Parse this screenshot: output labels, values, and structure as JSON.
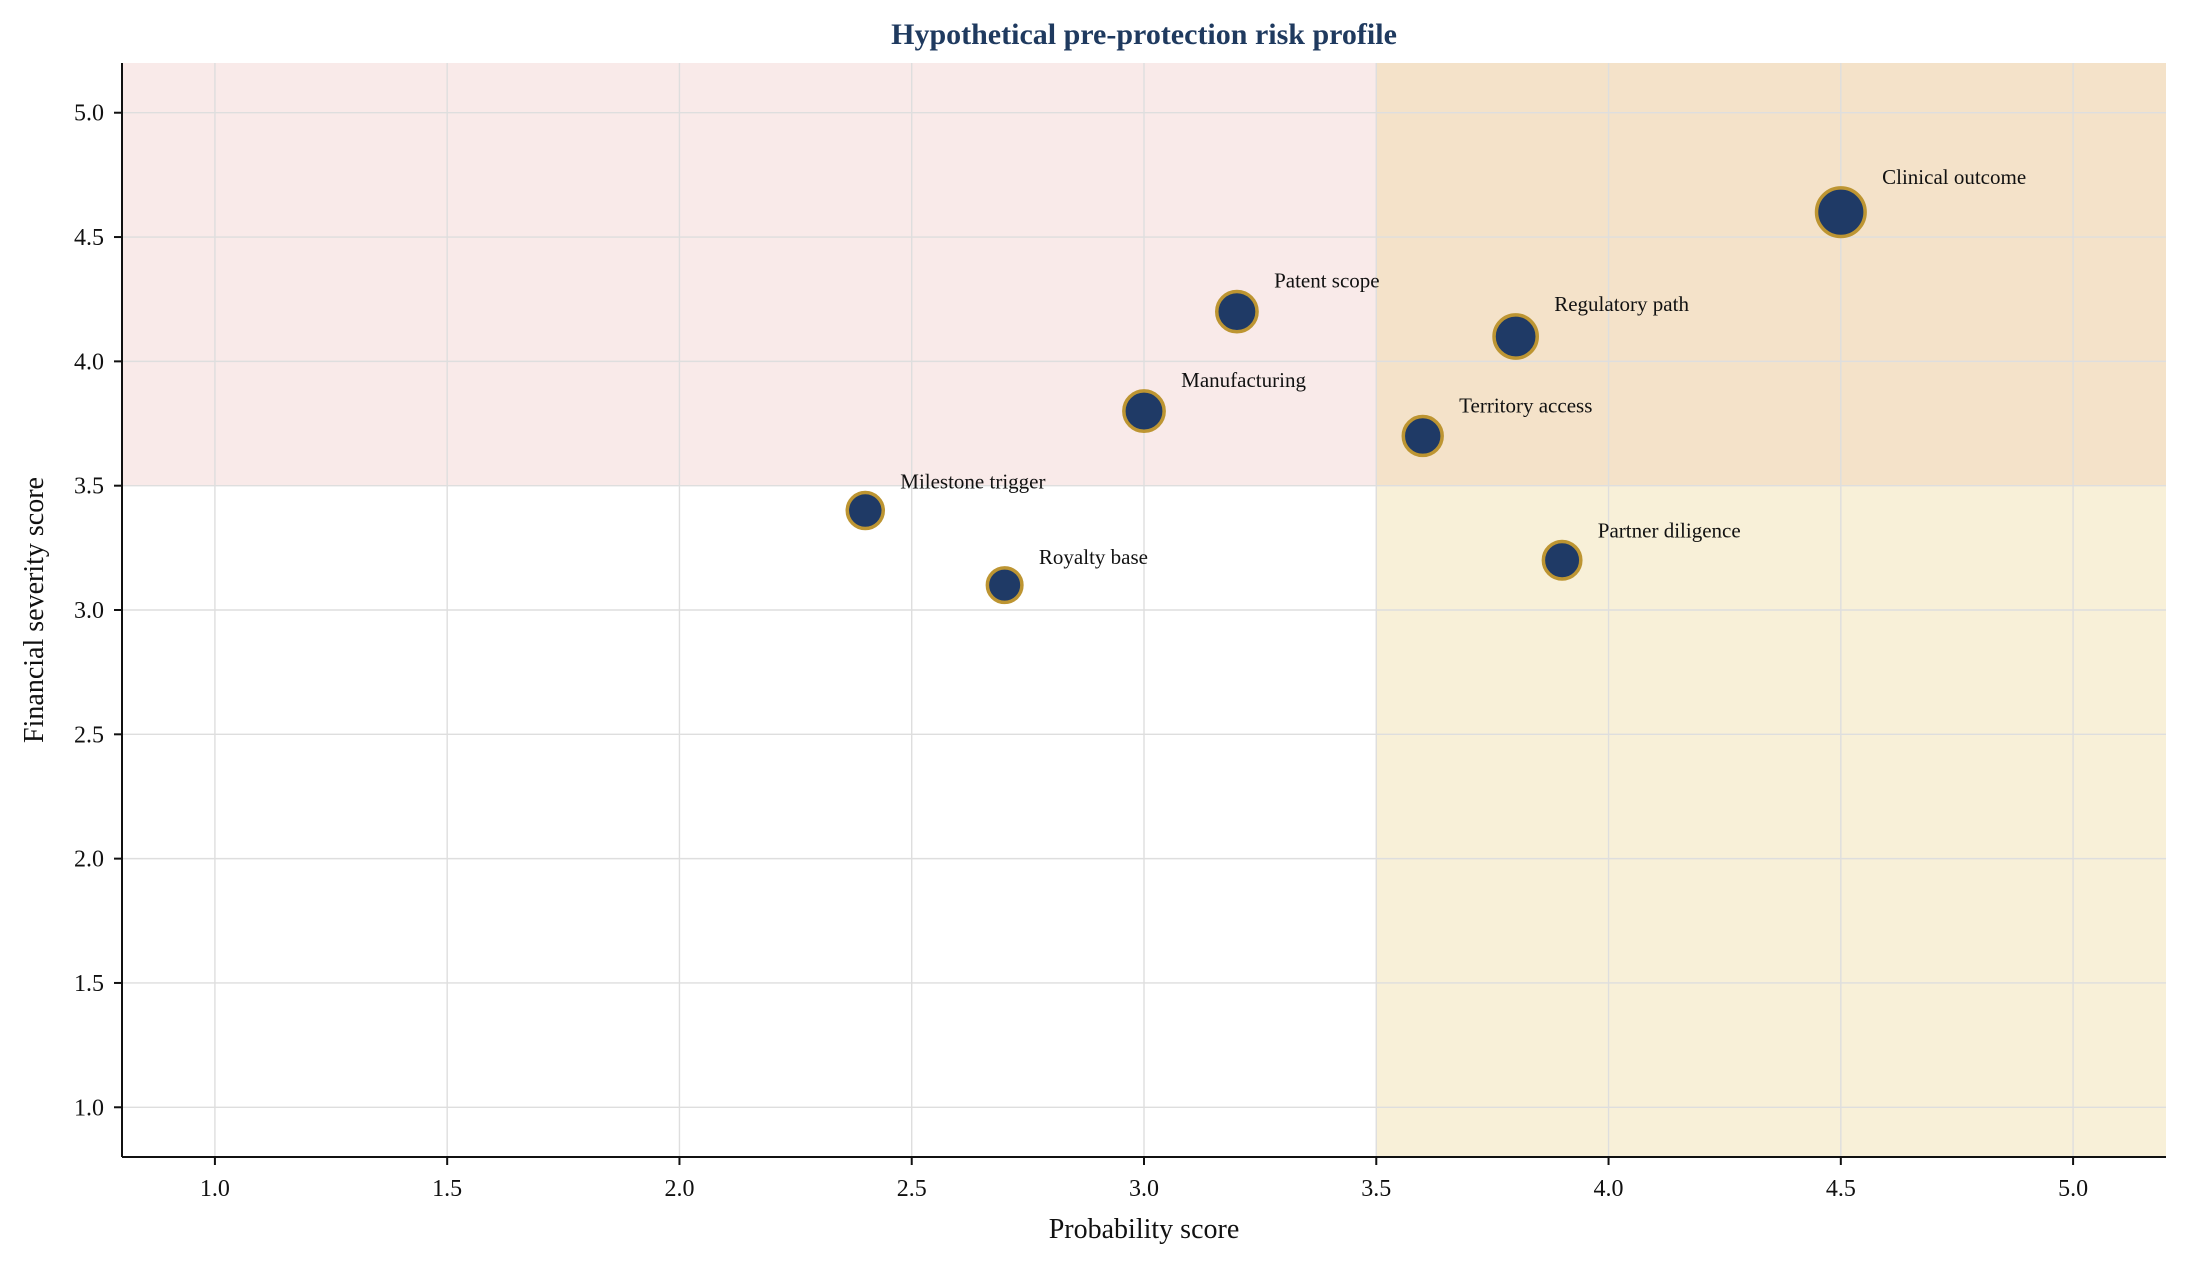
{
  "chart_data": {
    "type": "scatter",
    "title": "Hypothetical pre-protection risk profile",
    "xlabel": "Probability score",
    "ylabel": "Financial severity score",
    "xlim": [
      0.8,
      5.2
    ],
    "ylim": [
      0.8,
      5.2
    ],
    "x_ticks": [
      "1.0",
      "1.5",
      "2.0",
      "2.5",
      "3.0",
      "3.5",
      "4.0",
      "4.5",
      "5.0"
    ],
    "y_ticks": [
      "1.0",
      "1.5",
      "2.0",
      "2.5",
      "3.0",
      "3.5",
      "4.0",
      "4.5",
      "5.0"
    ],
    "grid": true,
    "legend": "none",
    "shaded_regions": [
      {
        "x_min": 0.8,
        "x_max": 5.2,
        "y_min": 3.5,
        "y_max": 5.2,
        "color": "#efc7c4",
        "opacity": 0.38
      },
      {
        "x_min": 3.5,
        "x_max": 5.2,
        "y_min": 0.8,
        "y_max": 5.2,
        "color": "#ebd38f",
        "opacity": 0.35
      }
    ],
    "points": [
      {
        "label": "Clinical outcome",
        "x": 4.5,
        "y": 4.6,
        "size": 1.35
      },
      {
        "label": "Patent scope",
        "x": 3.2,
        "y": 4.2,
        "size": 1.12
      },
      {
        "label": "Regulatory path",
        "x": 3.8,
        "y": 4.1,
        "size": 1.2
      },
      {
        "label": "Manufacturing",
        "x": 3.0,
        "y": 3.8,
        "size": 1.12
      },
      {
        "label": "Territory access",
        "x": 3.6,
        "y": 3.7,
        "size": 1.08
      },
      {
        "label": "Milestone trigger",
        "x": 2.4,
        "y": 3.4,
        "size": 1.0
      },
      {
        "label": "Partner diligence",
        "x": 3.9,
        "y": 3.2,
        "size": 1.04
      },
      {
        "label": "Royalty base",
        "x": 2.7,
        "y": 3.1,
        "size": 0.96
      }
    ],
    "colors": {
      "title": "#1f3a5f",
      "point_fill": "#1f3a66",
      "point_edge": "#bd9532",
      "grid": "#dedede",
      "axis": "#111111"
    }
  }
}
